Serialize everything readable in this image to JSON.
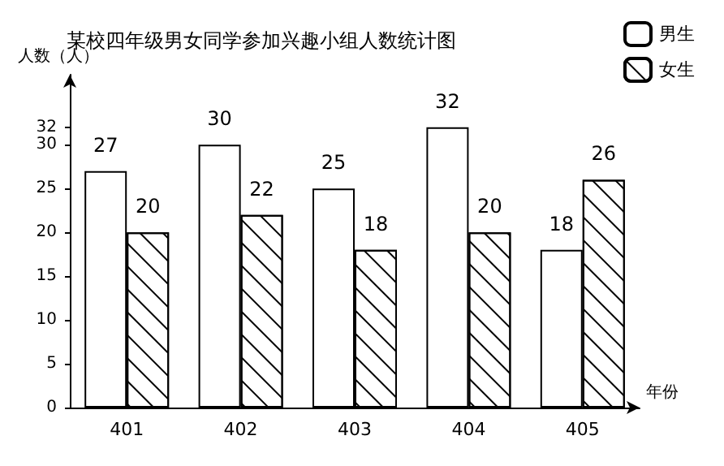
{
  "chart_data": {
    "type": "bar",
    "title": "某校四年级男女同学参加兴趣小组人数统计图",
    "ylabel": "人数（人）",
    "xlabel": "年份",
    "categories": [
      "401",
      "402",
      "403",
      "404",
      "405"
    ],
    "series": [
      {
        "name": "男生",
        "color": "#ffffff",
        "values": [
          27,
          30,
          25,
          32,
          18
        ]
      },
      {
        "name": "女生",
        "color": "#ffffff",
        "values": [
          20,
          22,
          18,
          20,
          26
        ]
      }
    ],
    "ylim": [
      0,
      38
    ],
    "yticks": [
      0,
      5,
      10,
      15,
      20,
      25,
      30,
      32
    ],
    "data_labels": true,
    "grid": false,
    "legend": "top right"
  }
}
